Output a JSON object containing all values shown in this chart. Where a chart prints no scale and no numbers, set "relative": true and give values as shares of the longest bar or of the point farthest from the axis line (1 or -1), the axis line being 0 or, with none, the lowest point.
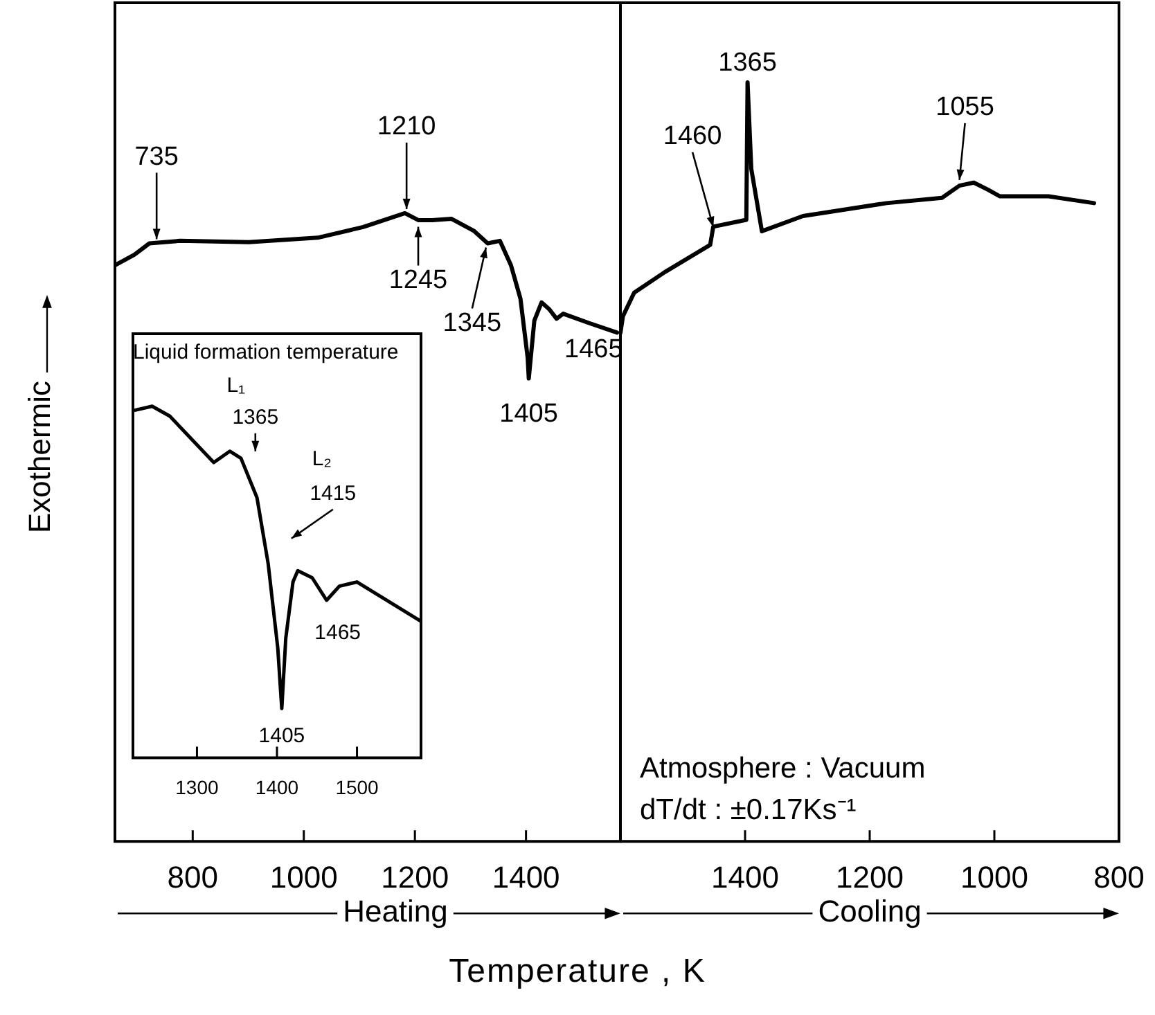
{
  "chart_data": [
    {
      "type": "line",
      "xlabel": "Heating",
      "ylabel": "Exothermic",
      "relative": true,
      "color": "#000000",
      "xlim": [
        660,
        1570
      ],
      "xticks": [
        800,
        1000,
        1200,
        1400
      ],
      "grid": false,
      "x": [
        660,
        695,
        722,
        777,
        901,
        1025,
        1107,
        1182,
        1206,
        1231,
        1266,
        1306,
        1331,
        1353,
        1373,
        1390,
        1403,
        1405,
        1415,
        1428,
        1442,
        1455,
        1467,
        1514,
        1564
      ],
      "values": [
        0.917,
        0.934,
        0.952,
        0.956,
        0.954,
        0.961,
        0.978,
        1.0,
        0.989,
        0.989,
        0.991,
        0.972,
        0.952,
        0.956,
        0.917,
        0.864,
        0.77,
        0.737,
        0.829,
        0.858,
        0.847,
        0.832,
        0.84,
        0.825,
        0.81
      ],
      "annotations": [
        {
          "text": "735",
          "x": 735,
          "y": 0.952
        },
        {
          "text": "1210",
          "x": 1185,
          "y": 1.0
        },
        {
          "text": "1245",
          "x": 1206,
          "y": 0.985
        },
        {
          "text": "1345",
          "x": 1328,
          "y": 0.952
        },
        {
          "text": "1405",
          "x": 1405,
          "y": 0.737
        },
        {
          "text": "1465",
          "x": 1467,
          "y": 0.84
        },
        "Temperature , K"
      ]
    },
    {
      "type": "line",
      "xlabel": "Cooling",
      "relative": true,
      "color": "#000000",
      "xlim": [
        1600,
        800
      ],
      "xticks": [
        1400,
        1200,
        1000,
        800
      ],
      "grid": false,
      "x": [
        1600,
        1596,
        1578,
        1529,
        1456,
        1451,
        1398,
        1396,
        1390,
        1373,
        1307,
        1173,
        1084,
        1056,
        1033,
        1011,
        991,
        913,
        840
      ],
      "values": [
        0.67,
        0.692,
        0.723,
        0.75,
        0.786,
        0.81,
        0.819,
        1.0,
        0.886,
        0.804,
        0.824,
        0.841,
        0.848,
        0.864,
        0.868,
        0.859,
        0.85,
        0.85,
        0.841
      ],
      "annotations": [
        {
          "text": "1460",
          "x": 1451,
          "y": 0.804
        },
        {
          "text": "1365",
          "x": 1396,
          "y": 1.0
        },
        {
          "text": "1055",
          "x": 1056,
          "y": 0.866
        },
        "Atmosphere : Vacuum",
        "dT/dt : ±0.17Ks⁻¹"
      ]
    },
    {
      "type": "line",
      "title": "Liquid formation temperature",
      "relative": true,
      "color": "#000000",
      "xlim": [
        1220,
        1580
      ],
      "xticks": [
        1300,
        1400,
        1500
      ],
      "grid": false,
      "x": [
        1221,
        1244,
        1266,
        1321,
        1341,
        1355,
        1375,
        1389,
        1401,
        1406,
        1411,
        1420,
        1426,
        1444,
        1462,
        1478,
        1500,
        1580
      ],
      "values": [
        0.988,
        1.0,
        0.972,
        0.84,
        0.872,
        0.852,
        0.74,
        0.552,
        0.312,
        0.14,
        0.34,
        0.5,
        0.532,
        0.512,
        0.448,
        0.488,
        0.5,
        0.388
      ],
      "annotations": [
        "L₁",
        "1365",
        "L₂",
        "1415",
        {
          "text": "1465",
          "x": 1462,
          "y": 0.448
        },
        {
          "text": "1405",
          "x": 1406,
          "y": 0.14
        }
      ]
    }
  ]
}
